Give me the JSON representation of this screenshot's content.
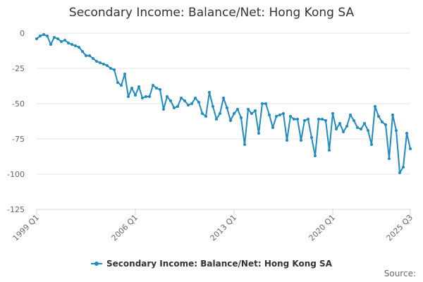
{
  "chart_data": {
    "type": "line",
    "title": "Secondary Income: Balance/Net: Hong Kong SA",
    "xlabel": "",
    "ylabel": "",
    "ylim": [
      -125,
      0
    ],
    "yticks": [
      0,
      -25,
      -50,
      -75,
      -100,
      -125
    ],
    "xtick_labels": [
      "1999 Q1",
      "2006 Q1",
      "2013 Q1",
      "2020 Q1",
      "2025 Q3"
    ],
    "x_range": [
      "1999 Q1",
      "2025 Q3"
    ],
    "grid": true,
    "legend_position": "bottom",
    "series": [
      {
        "name": "Secondary Income: Balance/Net: Hong Kong SA",
        "color": "#1f8bc3",
        "start": "1999 Q1",
        "frequency": "quarterly",
        "values": [
          -4,
          -2,
          -1,
          -2,
          -8,
          -3,
          -4,
          -6,
          -5,
          -7,
          -8,
          -9,
          -10,
          -13,
          -16,
          -16,
          -18,
          -20,
          -21,
          -22,
          -23,
          -25,
          -26,
          -35,
          -37,
          -29,
          -45,
          -39,
          -44,
          -38,
          -46,
          -45,
          -45,
          -37,
          -39,
          -40,
          -54,
          -45,
          -48,
          -53,
          -52,
          -46,
          -48,
          -51,
          -50,
          -46,
          -49,
          -57,
          -59,
          -42,
          -52,
          -61,
          -57,
          -46,
          -53,
          -62,
          -57,
          -54,
          -60,
          -79,
          -54,
          -57,
          -55,
          -71,
          -50,
          -50,
          -58,
          -67,
          -59,
          -58,
          -57,
          -76,
          -59,
          -61,
          -61,
          -76,
          -62,
          -61,
          -74,
          -87,
          -61,
          -61,
          -62,
          -83,
          -57,
          -68,
          -64,
          -70,
          -66,
          -58,
          -62,
          -67,
          -68,
          -64,
          -69,
          -79,
          -52,
          -59,
          -63,
          -65,
          -89,
          -58,
          -69,
          -99,
          -95,
          -71,
          -82
        ]
      }
    ]
  },
  "legend": {
    "label": "Secondary Income: Balance/Net: Hong Kong SA"
  },
  "source": {
    "label": "Source:"
  }
}
